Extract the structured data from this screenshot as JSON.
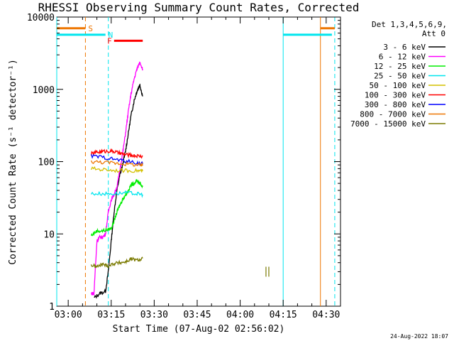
{
  "chart_data": {
    "type": "line",
    "title": "RHESSI Observing Summary Count Rates, Corrected",
    "xlabel": "Start Time (07-Aug-02 02:56:02)",
    "ylabel": "Corrected Count Rate (s⁻¹ detector⁻¹)",
    "y_scale": "log",
    "ylim": [
      1,
      10000
    ],
    "y_ticks": [
      1,
      10,
      100,
      1000,
      10000
    ],
    "y_tick_labels": [
      "1",
      "10",
      "100",
      "1000",
      "10000"
    ],
    "xlim": [
      "02:56",
      "04:35"
    ],
    "x_ticks": [
      "03:00",
      "03:15",
      "03:30",
      "03:45",
      "04:00",
      "04:15",
      "04:30"
    ],
    "legend": {
      "placement": "right",
      "header": [
        "Det 1,3,4,5,6,9,",
        "Att 0"
      ],
      "entries": [
        {
          "label": "3 - 6 keV",
          "color": "#000000"
        },
        {
          "label": "6 - 12 keV",
          "color": "#ff00ff"
        },
        {
          "label": "12 - 25 keV",
          "color": "#00ee00"
        },
        {
          "label": "25 - 50 keV",
          "color": "#00e5ee"
        },
        {
          "label": "50 - 100 keV",
          "color": "#d4c000"
        },
        {
          "label": "100 - 300 keV",
          "color": "#ff0000"
        },
        {
          "label": "300 - 800 keV",
          "color": "#0000ff"
        },
        {
          "label": "800 - 7000 keV",
          "color": "#ee7600"
        },
        {
          "label": "7000 - 15000 keV",
          "color": "#7a7a00"
        }
      ]
    },
    "flags": [
      {
        "label": "S",
        "color": "#ee7600",
        "y": 7000,
        "segments": [
          [
            "02:56",
            "03:06"
          ],
          [
            "04:28",
            "04:33"
          ]
        ]
      },
      {
        "label": "N",
        "color": "#00e5ee",
        "y": 5700,
        "segments": [
          [
            "02:56",
            "03:13"
          ],
          [
            "04:15",
            "04:32"
          ]
        ]
      },
      {
        "label": "F",
        "color": "#ff0000",
        "y": 4700,
        "segments": [
          [
            "03:16",
            "03:26"
          ]
        ]
      }
    ],
    "vlines": [
      {
        "x": "02:56",
        "color": "#00e5ee",
        "style": "solid"
      },
      {
        "x": "03:06",
        "color": "#ee7600",
        "style": "dashed"
      },
      {
        "x": "03:14",
        "color": "#00e5ee",
        "style": "dashed"
      },
      {
        "x": "04:15",
        "color": "#00e5ee",
        "style": "solid"
      },
      {
        "x": "04:28",
        "color": "#ee7600",
        "style": "solid"
      },
      {
        "x": "04:33",
        "color": "#00e5ee",
        "style": "dashed"
      }
    ],
    "series": [
      {
        "name": "3 - 6 keV",
        "color": "#000000",
        "x": [
          "03:09",
          "03:11",
          "03:13",
          "03:14",
          "03:15",
          "03:16",
          "03:17",
          "03:18",
          "03:19",
          "03:20",
          "03:21",
          "03:22",
          "03:23",
          "03:24",
          "03:25",
          "03:26"
        ],
        "y": [
          1.3,
          1.5,
          1.6,
          3,
          8,
          20,
          40,
          65,
          90,
          140,
          250,
          450,
          700,
          950,
          1150,
          800
        ]
      },
      {
        "name": "6 - 12 keV",
        "color": "#ff00ff",
        "x": [
          "03:08",
          "03:09",
          "03:10",
          "03:11",
          "03:12",
          "03:13",
          "03:14",
          "03:15",
          "03:16",
          "03:17",
          "03:18",
          "03:19",
          "03:20",
          "03:21",
          "03:22",
          "03:23",
          "03:24",
          "03:25",
          "03:26"
        ],
        "y": [
          1.5,
          1.5,
          8,
          9,
          9,
          10,
          20,
          30,
          35,
          45,
          75,
          130,
          250,
          500,
          900,
          1400,
          1900,
          2400,
          1900
        ]
      },
      {
        "name": "12 - 25 keV",
        "color": "#00ee00",
        "x": [
          "03:08",
          "03:10",
          "03:12",
          "03:14",
          "03:15",
          "03:16",
          "03:17",
          "03:18",
          "03:19",
          "03:20",
          "03:21",
          "03:22",
          "03:23",
          "03:24",
          "03:25",
          "03:26"
        ],
        "y": [
          9.5,
          11,
          11,
          11.5,
          12,
          15,
          20,
          25,
          30,
          35,
          40,
          48,
          50,
          55,
          50,
          45
        ]
      },
      {
        "name": "25 - 50 keV",
        "color": "#00e5ee",
        "x": [
          "03:08",
          "03:12",
          "03:16",
          "03:20",
          "03:24",
          "03:26"
        ],
        "y": [
          36,
          36,
          36,
          37,
          36,
          35
        ]
      },
      {
        "name": "50 - 100 keV",
        "color": "#d4c000",
        "x": [
          "03:08",
          "03:12",
          "03:16",
          "03:20",
          "03:24",
          "03:26"
        ],
        "y": [
          80,
          78,
          76,
          75,
          75,
          74
        ]
      },
      {
        "name": "100 - 300 keV",
        "color": "#ff0000",
        "x": [
          "03:08",
          "03:10",
          "03:12",
          "03:14",
          "03:16",
          "03:18",
          "03:20",
          "03:22",
          "03:24",
          "03:26"
        ],
        "y": [
          128,
          135,
          138,
          140,
          138,
          130,
          125,
          122,
          120,
          118
        ]
      },
      {
        "name": "300 - 800 keV",
        "color": "#0000ff",
        "x": [
          "03:08",
          "03:12",
          "03:16",
          "03:20",
          "03:24",
          "03:26"
        ],
        "y": [
          120,
          115,
          108,
          102,
          96,
          93
        ]
      },
      {
        "name": "800 - 7000 keV",
        "color": "#ee7600",
        "x": [
          "03:08",
          "03:12",
          "03:16",
          "03:20",
          "03:24",
          "03:26"
        ],
        "y": [
          100,
          98,
          96,
          93,
          90,
          88
        ]
      },
      {
        "name": "7000 - 15000 keV",
        "color": "#7a7a00",
        "x": [
          "03:08",
          "03:10",
          "03:12",
          "03:14",
          "03:16",
          "03:18",
          "03:20",
          "03:22",
          "03:24",
          "03:26"
        ],
        "y": [
          3.7,
          3.5,
          3.8,
          3.6,
          3.9,
          4.0,
          4.1,
          4.5,
          4.3,
          4.6
        ]
      }
    ],
    "isolated_marks": [
      {
        "series": "7000 - 15000 keV",
        "x": [
          "04:09",
          "04:10"
        ],
        "y": [
          3.0,
          3.0
        ]
      }
    ]
  },
  "footer": {
    "timestamp": "24-Aug-2022 18:07"
  }
}
